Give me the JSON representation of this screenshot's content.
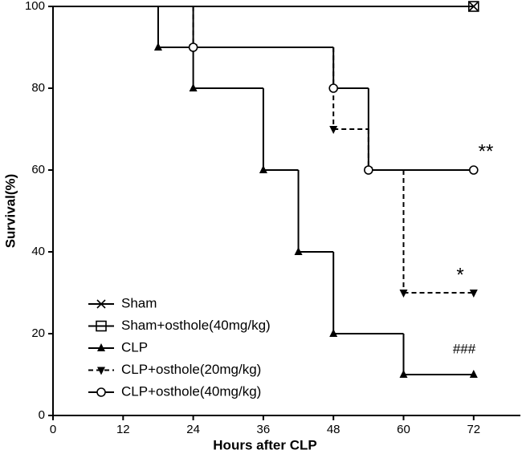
{
  "chart_data": {
    "type": "step",
    "x_label": "Hours after CLP",
    "y_label": "Survival(%)",
    "xlim": [
      0,
      80
    ],
    "ylim": [
      0,
      100
    ],
    "xticks": [
      0,
      12,
      24,
      36,
      48,
      60,
      72
    ],
    "yticks": [
      0,
      20,
      40,
      60,
      80,
      100
    ],
    "series": [
      {
        "name": "Sham",
        "color": "#000000",
        "marker": "x",
        "dash": false,
        "x": [
          0,
          72
        ],
        "values": [
          100,
          100
        ]
      },
      {
        "name": "Sham+osthole(40mg/kg)",
        "color": "#000000",
        "marker": "square",
        "dash": false,
        "x": [
          0,
          72
        ],
        "values": [
          100,
          100
        ]
      },
      {
        "name": "CLP",
        "color": "#000000",
        "marker": "triangle",
        "dash": false,
        "x": [
          0,
          18,
          24,
          36,
          42,
          48,
          60,
          72
        ],
        "values": [
          100,
          90,
          80,
          60,
          40,
          20,
          10,
          10
        ]
      },
      {
        "name": "CLP+osthole(20mg/kg)",
        "color": "#000000",
        "marker": "triangle-down",
        "dash": true,
        "x": [
          0,
          24,
          48,
          54,
          60,
          72
        ],
        "values": [
          100,
          90,
          70,
          60,
          30,
          30
        ]
      },
      {
        "name": "CLP+osthole(40mg/kg)",
        "color": "#000000",
        "marker": "circle",
        "dash": false,
        "x": [
          0,
          24,
          48,
          54,
          72
        ],
        "values": [
          100,
          90,
          80,
          60,
          60
        ]
      }
    ],
    "annotations": [
      "**",
      "*",
      "###"
    ]
  }
}
